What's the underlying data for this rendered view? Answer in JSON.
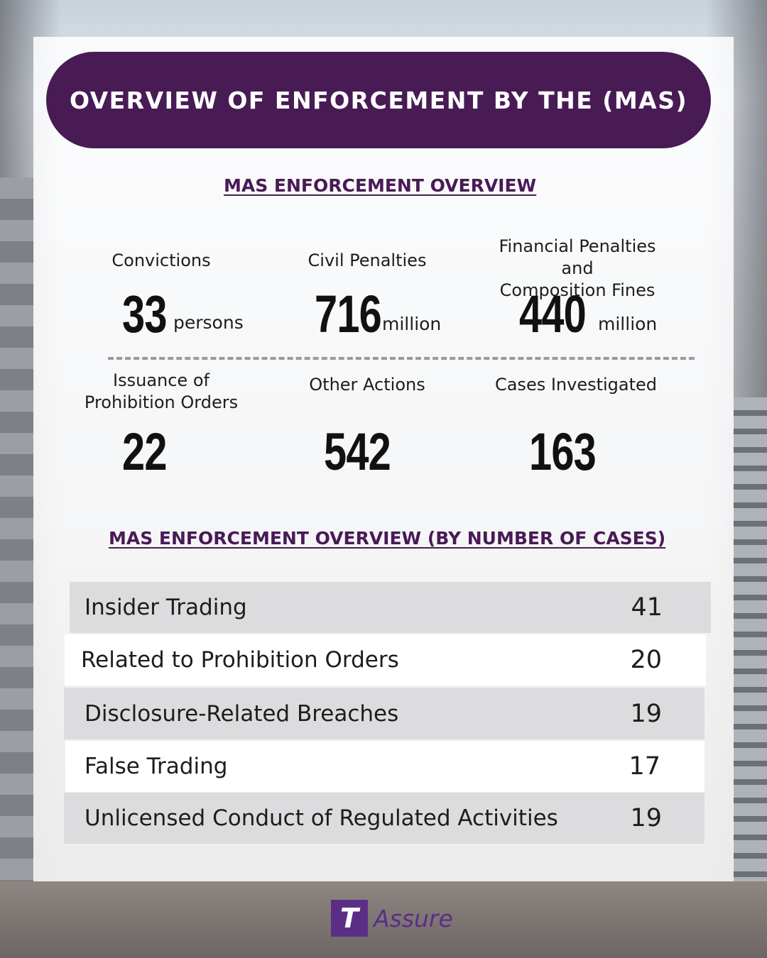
{
  "header": {
    "title": "OVERVIEW OF ENFORCEMENT BY THE (MAS)"
  },
  "overview": {
    "title": "MAS ENFORCEMENT OVERVIEW",
    "stats": [
      {
        "label": "Convictions",
        "value": "33",
        "unit": "persons"
      },
      {
        "label": "Civil Penalties",
        "value": "716",
        "unit": "million"
      },
      {
        "label": "Financial Penalties and\nComposition Fines",
        "value": "440",
        "unit": "million"
      },
      {
        "label": "Issuance of\nProhibition Orders",
        "value": "22",
        "unit": ""
      },
      {
        "label": "Other Actions",
        "value": "542",
        "unit": ""
      },
      {
        "label": "Cases Investigated",
        "value": "163",
        "unit": ""
      }
    ]
  },
  "cases": {
    "title": "MAS ENFORCEMENT OVERVIEW (BY NUMBER OF CASES)",
    "rows": [
      {
        "label": "Insider Trading",
        "value": "41"
      },
      {
        "label": "Related to Prohibition Orders",
        "value": "20"
      },
      {
        "label": "Disclosure-Related Breaches",
        "value": "19"
      },
      {
        "label": "False Trading",
        "value": "17"
      },
      {
        "label": "Unlicensed Conduct of Regulated Activities",
        "value": "19"
      }
    ]
  },
  "brand": {
    "logo_letter": "T",
    "name": "Assure",
    "accent": "#481b55",
    "logo_color": "#5b2e86"
  }
}
